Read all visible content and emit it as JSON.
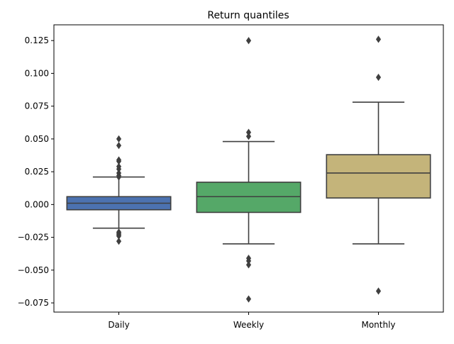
{
  "chart_data": {
    "type": "box",
    "title": "Return quantiles",
    "xlabel": "",
    "ylabel": "",
    "ylim": [
      -0.082,
      0.137
    ],
    "yticks": [
      -0.075,
      -0.05,
      -0.025,
      0.0,
      0.025,
      0.05,
      0.075,
      0.1,
      0.125
    ],
    "ytick_labels": [
      "−0.075",
      "−0.050",
      "−0.025",
      "0.000",
      "0.025",
      "0.050",
      "0.075",
      "0.100",
      "0.125"
    ],
    "categories": [
      "Daily",
      "Weekly",
      "Monthly"
    ],
    "grid": false,
    "series": [
      {
        "category": "Daily",
        "color": "#4c72b0",
        "whisker_low": -0.018,
        "q1": -0.004,
        "median": 0.001,
        "q3": 0.006,
        "whisker_high": 0.021,
        "outliers": [
          0.05,
          0.045,
          0.034,
          0.033,
          0.029,
          0.027,
          0.024,
          0.022,
          0.021,
          -0.021,
          -0.022,
          -0.023,
          -0.024,
          -0.028
        ]
      },
      {
        "category": "Weekly",
        "color": "#55a868",
        "whisker_low": -0.03,
        "q1": -0.006,
        "median": 0.006,
        "q3": 0.017,
        "whisker_high": 0.048,
        "outliers": [
          0.125,
          0.055,
          0.052,
          -0.041,
          -0.043,
          -0.046,
          -0.072
        ]
      },
      {
        "category": "Monthly",
        "color": "#c4b47a",
        "whisker_low": -0.03,
        "q1": 0.005,
        "median": 0.024,
        "q3": 0.038,
        "whisker_high": 0.078,
        "outliers": [
          0.126,
          0.097,
          -0.066
        ]
      }
    ]
  }
}
